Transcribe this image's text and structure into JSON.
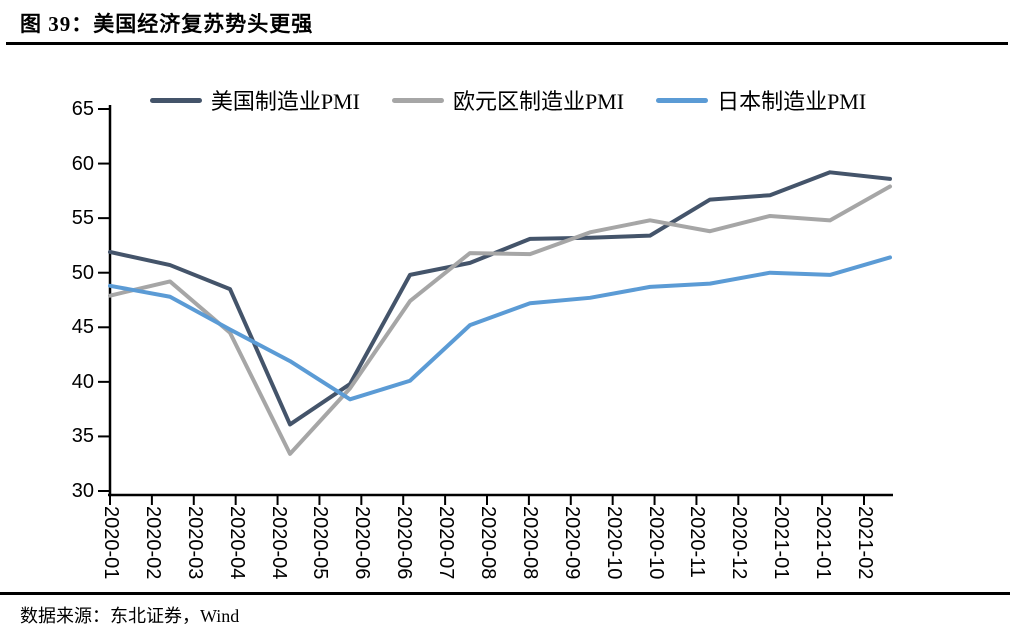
{
  "header": {
    "title": "图 39：美国经济复苏势头更强"
  },
  "footer": {
    "source": "数据来源：东北证券，Wind"
  },
  "chart_data": {
    "type": "line",
    "title": "图 39：美国经济复苏势头更强",
    "categories": [
      "2020-01",
      "2020-02",
      "2020-03",
      "2020-04",
      "2020-05",
      "2020-06",
      "2020-07",
      "2020-08",
      "2020-09",
      "2020-10",
      "2020-11",
      "2020-12",
      "2021-01",
      "2021-02"
    ],
    "x_tick_labels": [
      "2020-01",
      "2020-02",
      "2020-03",
      "2020-04",
      "2020-04",
      "2020-05",
      "2020-06",
      "2020-06",
      "2020-07",
      "2020-08",
      "2020-08",
      "2020-09",
      "2020-10",
      "2020-10",
      "2020-11",
      "2020-12",
      "2021-01",
      "2021-01",
      "2021-02"
    ],
    "series": [
      {
        "name": "美国制造业PMI",
        "color": "#44546A",
        "values": [
          51.9,
          50.7,
          48.5,
          36.1,
          39.8,
          49.8,
          50.9,
          53.1,
          53.2,
          53.4,
          56.7,
          57.1,
          59.2,
          58.6
        ]
      },
      {
        "name": "欧元区制造业PMI",
        "color": "#A6A6A6",
        "values": [
          47.9,
          49.2,
          44.5,
          33.4,
          39.4,
          47.4,
          51.8,
          51.7,
          53.7,
          54.8,
          53.8,
          55.2,
          54.8,
          57.9
        ]
      },
      {
        "name": "日本制造业PMI",
        "color": "#5B9BD5",
        "values": [
          48.8,
          47.8,
          44.8,
          41.9,
          38.4,
          40.1,
          45.2,
          47.2,
          47.7,
          48.7,
          49.0,
          50.0,
          49.8,
          51.4
        ]
      }
    ],
    "y_ticks": [
      65,
      60,
      55,
      50,
      45,
      40,
      35,
      30
    ],
    "ylim": [
      30,
      65
    ],
    "grid": false,
    "legend_position": "top",
    "axis_color": "#000000"
  }
}
